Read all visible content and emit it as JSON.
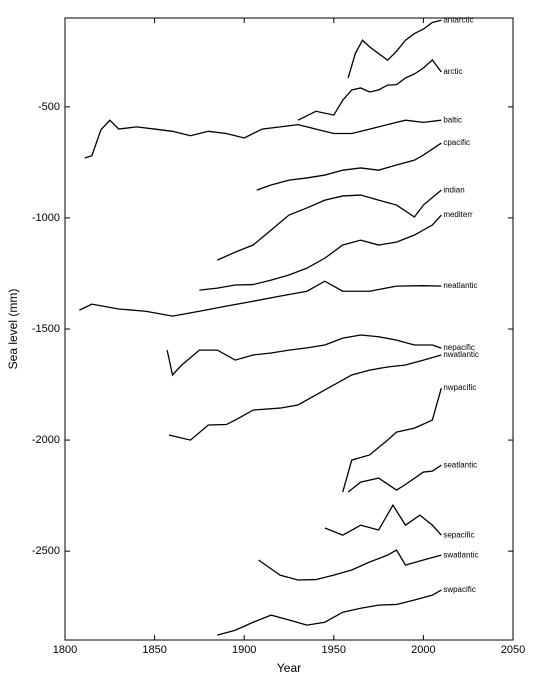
{
  "chart_data": {
    "type": "line",
    "xlabel": "Year",
    "ylabel": "Sea level (mm)",
    "xlim": [
      1800,
      2050
    ],
    "ylim": [
      -2900,
      -100
    ],
    "xticks": [
      1800,
      1850,
      1900,
      1950,
      2000,
      2050
    ],
    "yticks": [
      -500,
      -1000,
      -1500,
      -2000,
      -2500
    ],
    "series": [
      {
        "name": "antarctic",
        "color": "#000000",
        "x": [
          1958,
          1962,
          1966,
          1970,
          1975,
          1980,
          1985,
          1990,
          1995,
          2000,
          2005,
          2010
        ],
        "values": [
          -370,
          -260,
          -200,
          -230,
          -260,
          -290,
          -250,
          -200,
          -170,
          -150,
          -120,
          -110
        ]
      },
      {
        "name": "arctic",
        "color": "#000000",
        "x": [
          1930,
          1940,
          1950,
          1955,
          1960,
          1965,
          1970,
          1975,
          1980,
          1985,
          1990,
          1995,
          2000,
          2005,
          2010
        ],
        "values": [
          -560,
          -520,
          -537,
          -470,
          -424,
          -415,
          -433,
          -424,
          -402,
          -400,
          -370,
          -352,
          -325,
          -289,
          -343
        ]
      },
      {
        "name": "baltic",
        "color": "#000000",
        "x": [
          1811,
          1815,
          1820,
          1825,
          1830,
          1840,
          1850,
          1860,
          1870,
          1880,
          1890,
          1900,
          1910,
          1920,
          1930,
          1940,
          1950,
          1960,
          1970,
          1980,
          1990,
          2000,
          2010
        ],
        "values": [
          -730,
          -720,
          -604,
          -560,
          -600,
          -590,
          -600,
          -610,
          -630,
          -610,
          -620,
          -640,
          -600,
          -590,
          -580,
          -600,
          -620,
          -620,
          -600,
          -580,
          -560,
          -570,
          -560
        ]
      },
      {
        "name": "cpacific",
        "color": "#000000",
        "x": [
          1907,
          1915,
          1925,
          1935,
          1945,
          1955,
          1965,
          1975,
          1985,
          1995,
          2000,
          2010
        ],
        "values": [
          -875,
          -852,
          -830,
          -820,
          -807,
          -785,
          -775,
          -785,
          -762,
          -740,
          -717,
          -663
        ]
      },
      {
        "name": "indian",
        "color": "#000000",
        "x": [
          1885,
          1895,
          1905,
          1915,
          1925,
          1935,
          1945,
          1955,
          1965,
          1975,
          1985,
          1995,
          2000,
          2010
        ],
        "values": [
          -1190,
          -1154,
          -1122,
          -1055,
          -987,
          -955,
          -920,
          -901,
          -897,
          -920,
          -942,
          -996,
          -942,
          -875
        ]
      },
      {
        "name": "mediterr",
        "color": "#000000",
        "x": [
          1875,
          1885,
          1895,
          1905,
          1915,
          1925,
          1935,
          1945,
          1955,
          1965,
          1975,
          1985,
          1995,
          2005,
          2010
        ],
        "values": [
          -1325,
          -1316,
          -1302,
          -1300,
          -1280,
          -1257,
          -1226,
          -1181,
          -1122,
          -1100,
          -1122,
          -1109,
          -1077,
          -1032,
          -987
        ]
      },
      {
        "name": "neatlantic",
        "color": "#000000",
        "x": [
          1808,
          1815,
          1830,
          1845,
          1860,
          1875,
          1890,
          1905,
          1920,
          1935,
          1945,
          1955,
          1970,
          1985,
          2000,
          2010
        ],
        "values": [
          -1415,
          -1388,
          -1410,
          -1420,
          -1442,
          -1420,
          -1397,
          -1375,
          -1352,
          -1330,
          -1285,
          -1330,
          -1330,
          -1307,
          -1305,
          -1307
        ]
      },
      {
        "name": "nepacific",
        "color": "#000000",
        "x": [
          1857,
          1860,
          1865,
          1875,
          1885,
          1895,
          1905,
          1915,
          1925,
          1935,
          1945,
          1955,
          1965,
          1975,
          1985,
          1995,
          2005,
          2010
        ],
        "values": [
          -1595,
          -1707,
          -1663,
          -1595,
          -1595,
          -1640,
          -1617,
          -1608,
          -1595,
          -1585,
          -1572,
          -1541,
          -1527,
          -1535,
          -1550,
          -1572,
          -1572,
          -1586
        ]
      },
      {
        "name": "nwatlantic",
        "color": "#000000",
        "x": [
          1858,
          1870,
          1880,
          1890,
          1895,
          1905,
          1920,
          1930,
          1940,
          1950,
          1960,
          1970,
          1980,
          1990,
          2000,
          2010
        ],
        "values": [
          -1977,
          -2000,
          -1932,
          -1930,
          -1910,
          -1865,
          -1856,
          -1842,
          -1797,
          -1752,
          -1707,
          -1685,
          -1671,
          -1662,
          -1640,
          -1617
        ]
      },
      {
        "name": "nwpacific",
        "color": "#000000",
        "x": [
          1955,
          1960,
          1970,
          1980,
          1985,
          1995,
          2005,
          2010
        ],
        "values": [
          -2234,
          -2090,
          -2067,
          -2000,
          -1964,
          -1946,
          -1910,
          -1766
        ]
      },
      {
        "name": "seatlantic",
        "color": "#000000",
        "x": [
          1958,
          1965,
          1975,
          1985,
          1990,
          2000,
          2005,
          2010
        ],
        "values": [
          -2234,
          -2189,
          -2171,
          -2225,
          -2200,
          -2144,
          -2140,
          -2113
        ]
      },
      {
        "name": "sepacific",
        "color": "#000000",
        "x": [
          1945,
          1955,
          1965,
          1975,
          1983,
          1990,
          1998,
          2005,
          2010
        ],
        "values": [
          -2396,
          -2428,
          -2383,
          -2405,
          -2293,
          -2383,
          -2338,
          -2383,
          -2428
        ]
      },
      {
        "name": "swatlantic",
        "color": "#000000",
        "x": [
          1908,
          1920,
          1930,
          1940,
          1950,
          1960,
          1970,
          1980,
          1985,
          1990,
          2000,
          2010
        ],
        "values": [
          -2540,
          -2608,
          -2630,
          -2628,
          -2608,
          -2585,
          -2549,
          -2518,
          -2495,
          -2563,
          -2540,
          -2518
        ]
      },
      {
        "name": "swpacific",
        "color": "#000000",
        "x": [
          1885,
          1895,
          1905,
          1915,
          1925,
          1935,
          1945,
          1955,
          1965,
          1975,
          1985,
          1995,
          2005,
          2010
        ],
        "values": [
          -2878,
          -2856,
          -2820,
          -2788,
          -2810,
          -2833,
          -2820,
          -2775,
          -2757,
          -2743,
          -2740,
          -2720,
          -2698,
          -2675
        ]
      }
    ]
  }
}
